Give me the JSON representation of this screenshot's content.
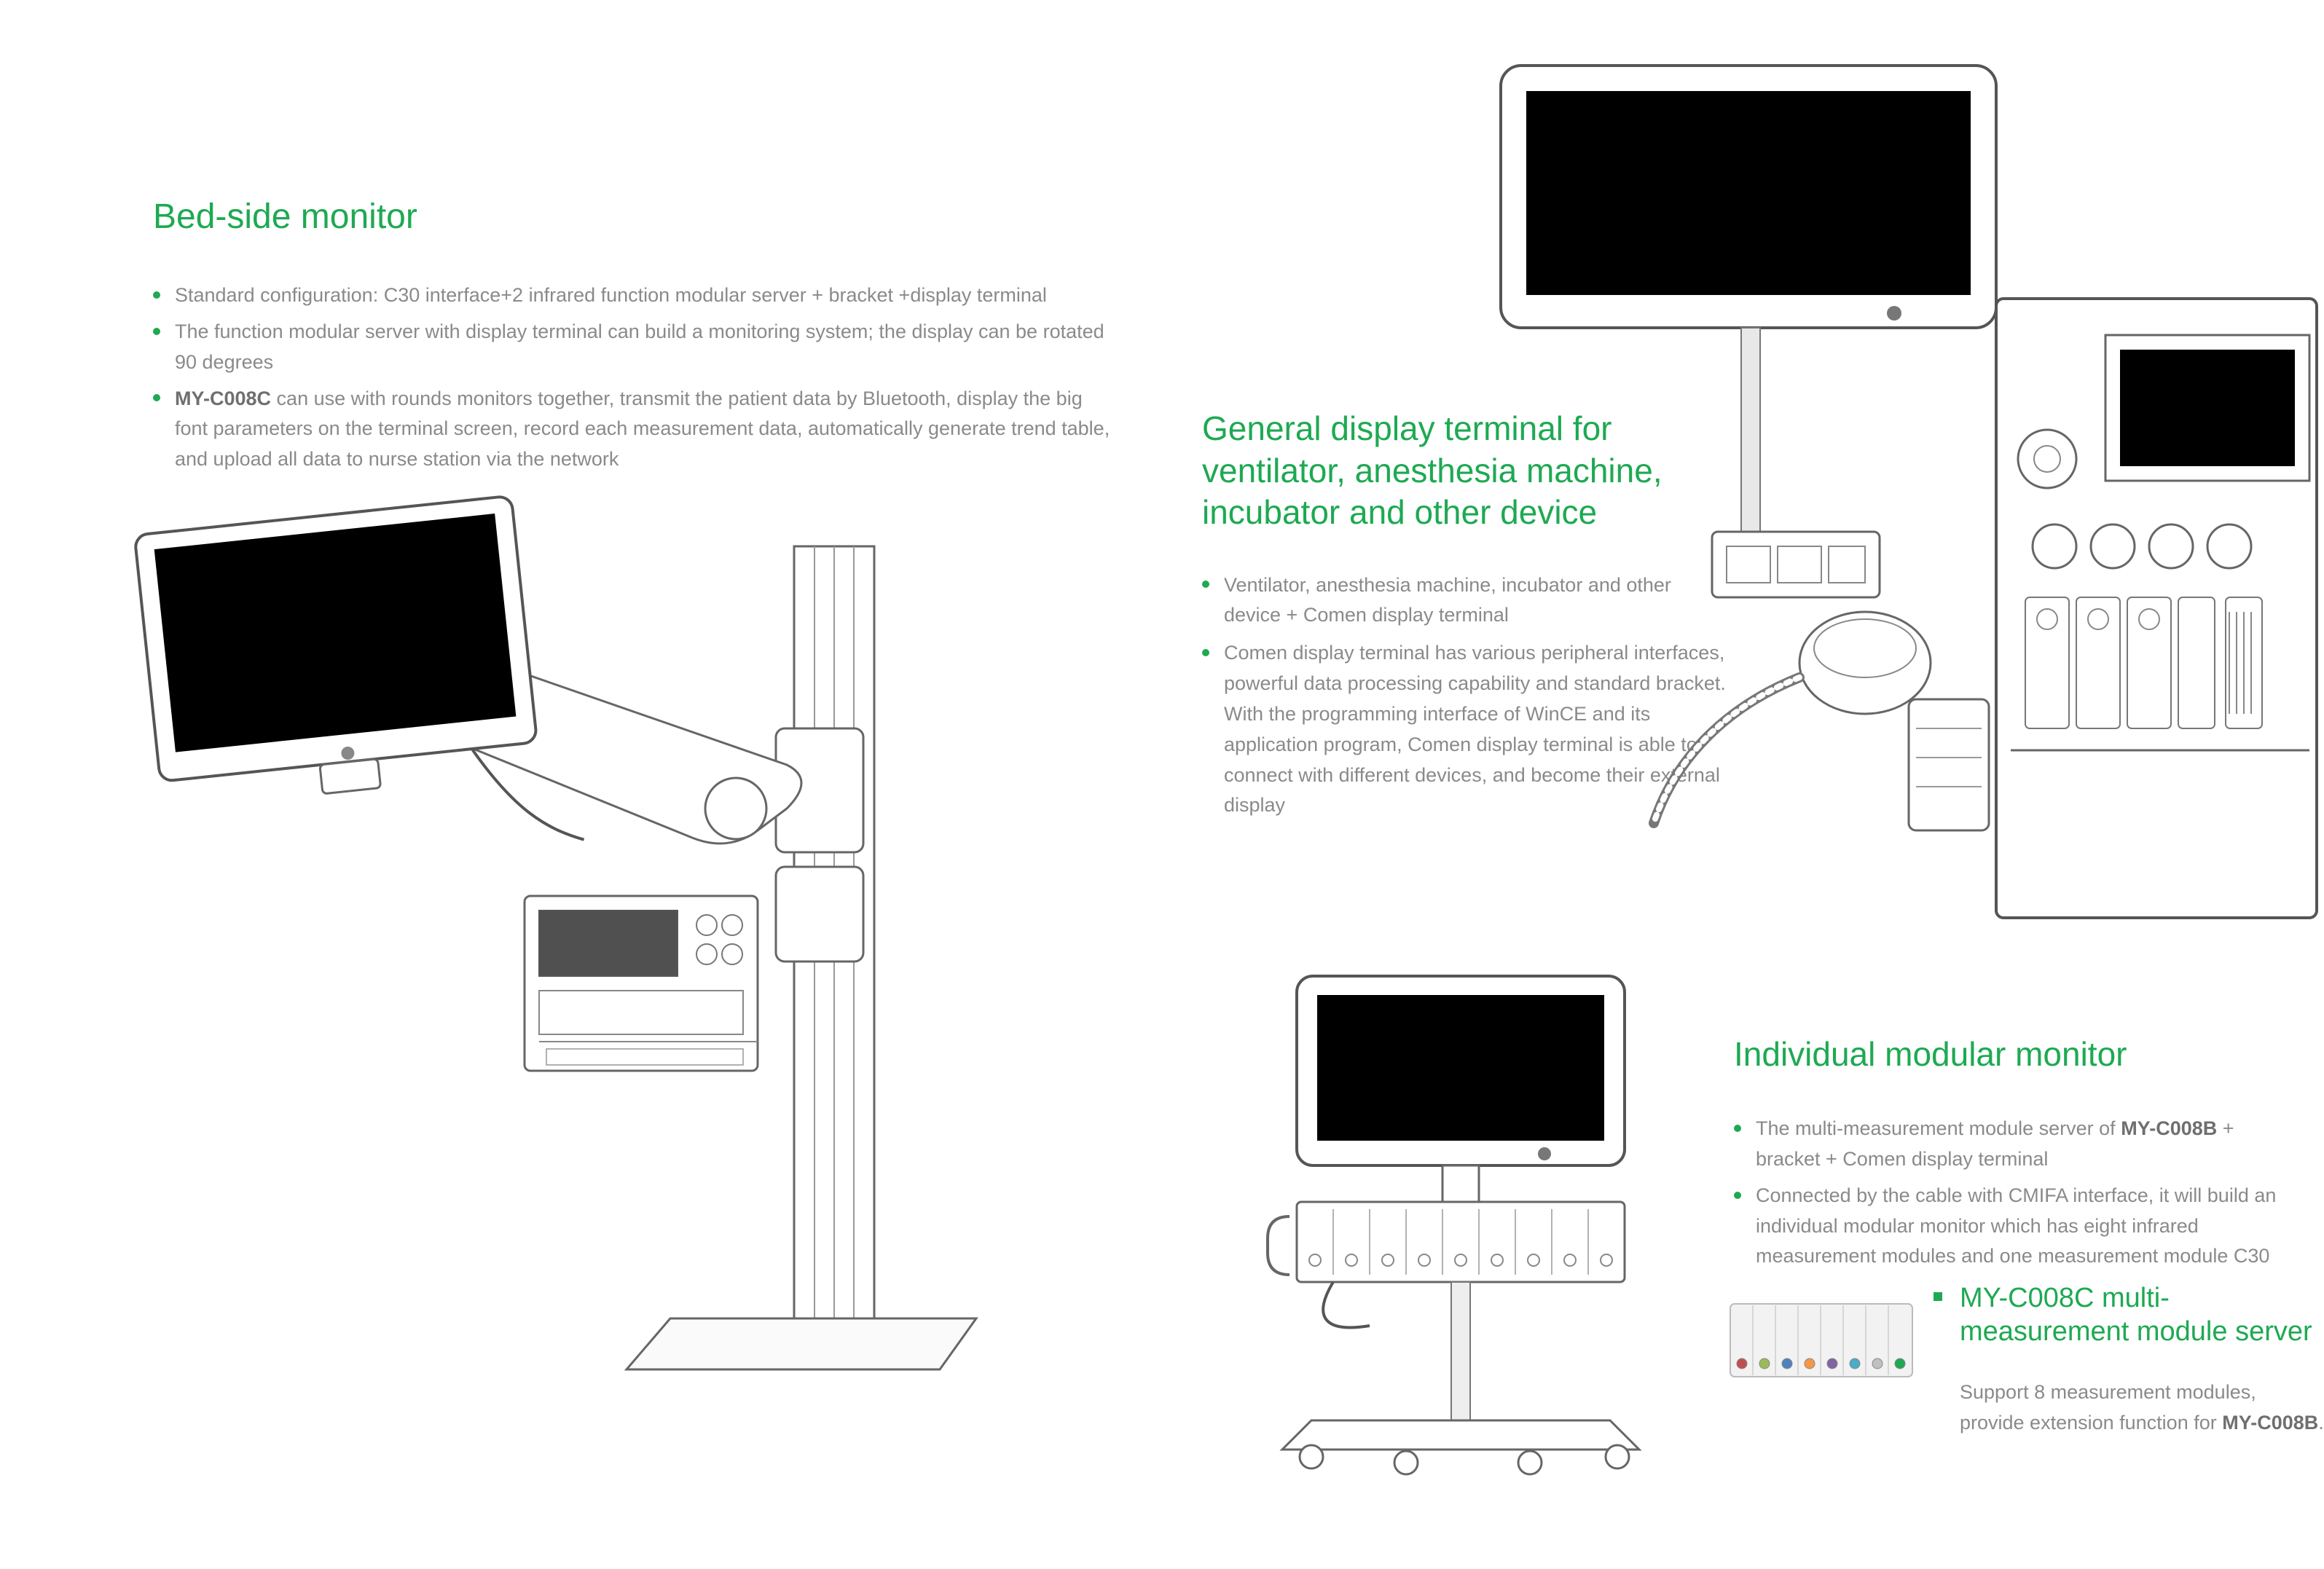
{
  "colors": {
    "accent": "#1ea952",
    "body_text": "#8a8a8a",
    "bold_text": "#6f6f6f",
    "background": "#ffffff",
    "lcd_dark": "#4a4a4a",
    "outline": "#555555"
  },
  "typography": {
    "title_fontsize_pt": 36,
    "body_fontsize_pt": 20,
    "subtitle_fontsize_pt": 28
  },
  "bedside": {
    "title": "Bed-side monitor",
    "bullets": [
      "Standard configuration:  C30 interface+2 infrared function modular server + bracket +display terminal",
      "The function modular server with display terminal can build a monitoring system; the display can be rotated 90 degrees",
      "MY-C008C can use with rounds monitors together, transmit the patient data by Bluetooth, display the big font parameters on the terminal screen, record each measurement data, automatically generate trend table, and upload all data to nurse station via the network"
    ],
    "bold_prefix_index": 2,
    "bold_prefix_text": "MY-C008C"
  },
  "general": {
    "title": "General display terminal for ventilator, anesthesia machine, incubator and other device",
    "bullets": [
      "Ventilator, anesthesia machine, incubator and other device + Comen display terminal",
      "Comen display terminal has various peripheral interfaces, powerful data processing capability and standard bracket. With the programming interface of WinCE and its application program, Comen display terminal is able to connect with different devices, and become their external display"
    ]
  },
  "individual": {
    "title": "Individual modular monitor",
    "bullets": [
      "The multi-measurement module server of MY-C008B + bracket + Comen display terminal",
      "Connected by the cable with CMIFA interface, it will build an individual modular monitor which has eight infrared measurement modules and one measurement module C30"
    ],
    "bold_inline_index": 0,
    "bold_inline_text": "MY-C008B"
  },
  "module_server": {
    "title": "MY-C008C multi-measurement module server",
    "desc_prefix": "Support 8 measurement modules, provide extension function for ",
    "desc_bold": "MY-C008B",
    "desc_suffix": ".",
    "port_colors": [
      "#c0504d",
      "#9bbb59",
      "#4f81bd",
      "#f79646",
      "#8064a2",
      "#4bacc6",
      "#c0c0c0",
      "#1ea952"
    ]
  }
}
